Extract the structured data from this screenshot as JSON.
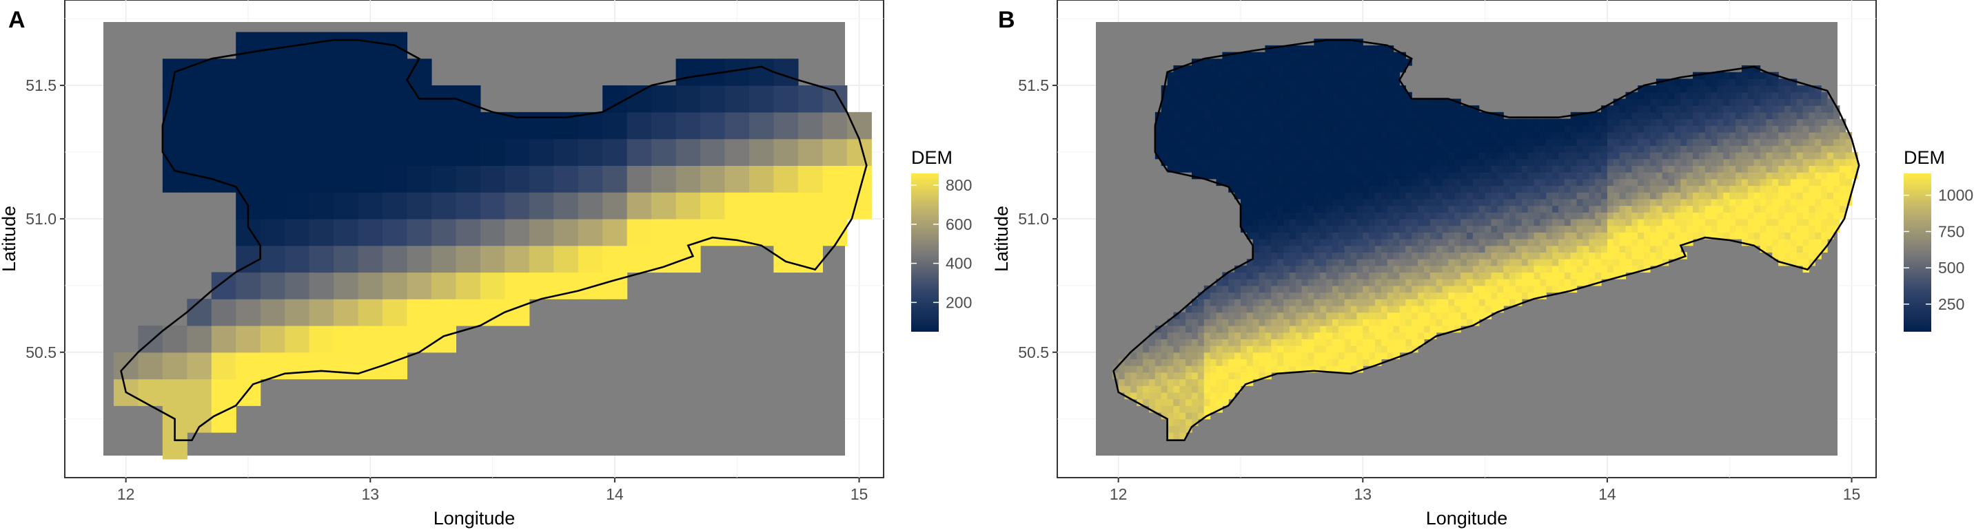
{
  "colors": {
    "background": "#7f7f7f",
    "panel_border": "#333333",
    "grid": "#ebebeb",
    "outline": "#000000",
    "low": "#00204d",
    "mid": "#7c7b78",
    "high": "#ffea46"
  },
  "chart_data": [
    {
      "type": "heatmap",
      "panel_tag": "A",
      "xlabel": "Longitude",
      "ylabel": "Latitude",
      "xlim": [
        11.75,
        15.1
      ],
      "ylim": [
        50.03,
        51.82
      ],
      "x_ticks": [
        12,
        13,
        14,
        15
      ],
      "y_ticks": [
        50.5,
        51.0,
        51.5
      ],
      "x_tick_labels": [
        "12",
        "13",
        "14",
        "15"
      ],
      "y_tick_labels": [
        "50.5",
        "51.0",
        "51.5"
      ],
      "grid": true,
      "legend": {
        "title": "DEM",
        "position": "right",
        "range": [
          50,
          860
        ],
        "breaks": [
          200,
          400,
          600,
          800
        ],
        "break_labels": [
          "200",
          "400",
          "600",
          "800"
        ]
      },
      "cell_size": 0.1,
      "values_description": "DEM elevation in metres on a 0.1 degree grid",
      "cells_from": "raster",
      "raster": {
        "resolution_deg": 0.1,
        "z_range": [
          50,
          860
        ]
      }
    },
    {
      "type": "heatmap",
      "panel_tag": "B",
      "xlabel": "Longitude",
      "ylabel": "Latitude",
      "xlim": [
        11.75,
        15.1
      ],
      "ylim": [
        50.03,
        51.82
      ],
      "x_ticks": [
        12,
        13,
        14,
        15
      ],
      "y_ticks": [
        50.5,
        51.0,
        51.5
      ],
      "x_tick_labels": [
        "12",
        "13",
        "14",
        "15"
      ],
      "y_tick_labels": [
        "50.5",
        "51.0",
        "51.5"
      ],
      "grid": true,
      "legend": {
        "title": "DEM",
        "position": "right",
        "range": [
          60,
          1150
        ],
        "breaks": [
          250,
          500,
          750,
          1000
        ],
        "break_labels": [
          "250",
          "500",
          "750",
          "1000"
        ]
      },
      "cell_size": 0.025,
      "values_description": "DEM elevation in metres on a fine grid",
      "raster": {
        "resolution_deg": 0.025,
        "z_range": [
          60,
          1150
        ]
      }
    }
  ],
  "outline_lonlat": [
    [
      12.2,
      50.17
    ],
    [
      12.27,
      50.17
    ],
    [
      12.3,
      50.22
    ],
    [
      12.36,
      50.26
    ],
    [
      12.45,
      50.3
    ],
    [
      12.52,
      50.38
    ],
    [
      12.65,
      50.42
    ],
    [
      12.8,
      50.43
    ],
    [
      12.95,
      50.42
    ],
    [
      13.05,
      50.45
    ],
    [
      13.2,
      50.5
    ],
    [
      13.3,
      50.56
    ],
    [
      13.45,
      50.6
    ],
    [
      13.55,
      50.65
    ],
    [
      13.7,
      50.7
    ],
    [
      13.85,
      50.73
    ],
    [
      14.0,
      50.77
    ],
    [
      14.2,
      50.82
    ],
    [
      14.32,
      50.86
    ],
    [
      14.3,
      50.9
    ],
    [
      14.4,
      50.93
    ],
    [
      14.5,
      50.92
    ],
    [
      14.6,
      50.9
    ],
    [
      14.7,
      50.84
    ],
    [
      14.82,
      50.81
    ],
    [
      14.9,
      50.9
    ],
    [
      14.97,
      51.0
    ],
    [
      15.0,
      51.1
    ],
    [
      15.03,
      51.2
    ],
    [
      15.0,
      51.3
    ],
    [
      14.95,
      51.4
    ],
    [
      14.9,
      51.48
    ],
    [
      14.75,
      51.52
    ],
    [
      14.65,
      51.55
    ],
    [
      14.6,
      51.57
    ],
    [
      14.45,
      51.55
    ],
    [
      14.3,
      51.53
    ],
    [
      14.15,
      51.5
    ],
    [
      14.05,
      51.45
    ],
    [
      13.95,
      51.4
    ],
    [
      13.8,
      51.38
    ],
    [
      13.6,
      51.38
    ],
    [
      13.5,
      51.4
    ],
    [
      13.35,
      51.45
    ],
    [
      13.2,
      51.45
    ],
    [
      13.15,
      51.52
    ],
    [
      13.2,
      51.6
    ],
    [
      13.1,
      51.65
    ],
    [
      12.95,
      51.67
    ],
    [
      12.85,
      51.67
    ],
    [
      12.7,
      51.65
    ],
    [
      12.55,
      51.63
    ],
    [
      12.35,
      51.6
    ],
    [
      12.2,
      51.55
    ],
    [
      12.18,
      51.45
    ],
    [
      12.15,
      51.35
    ],
    [
      12.15,
      51.25
    ],
    [
      12.2,
      51.18
    ],
    [
      12.35,
      51.15
    ],
    [
      12.45,
      51.12
    ],
    [
      12.5,
      51.05
    ],
    [
      12.5,
      50.97
    ],
    [
      12.55,
      50.9
    ],
    [
      12.55,
      50.85
    ],
    [
      12.45,
      50.8
    ],
    [
      12.35,
      50.73
    ],
    [
      12.25,
      50.65
    ],
    [
      12.15,
      50.58
    ],
    [
      12.05,
      50.5
    ],
    [
      11.98,
      50.43
    ],
    [
      12.0,
      50.35
    ],
    [
      12.1,
      50.3
    ],
    [
      12.2,
      50.25
    ],
    [
      12.2,
      50.17
    ]
  ]
}
